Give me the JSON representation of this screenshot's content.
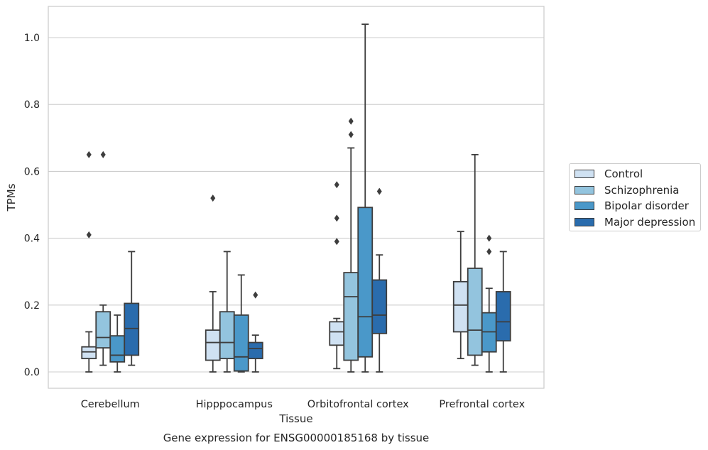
{
  "caption": "Gene expression for ENSG00000185168 by tissue",
  "chart_data": {
    "type": "boxplot",
    "xlabel": "Tissue",
    "ylabel": "TPMs",
    "ylim": [
      -0.05,
      1.09
    ],
    "yticks": [
      "0.0",
      "0.2",
      "0.4",
      "0.6",
      "0.8",
      "1.0"
    ],
    "grid": "horizontal",
    "legend_position": "right",
    "categories": [
      "Cerebellum",
      "Hipppocampus",
      "Orbitofrontal cortex",
      "Prefrontal cortex"
    ],
    "series": [
      {
        "name": "Control",
        "color": "#cfe1f2",
        "boxes": [
          {
            "whislo": 0.0,
            "q1": 0.04,
            "med": 0.06,
            "q3": 0.075,
            "whishi": 0.12,
            "fliers": [
              0.41,
              0.65
            ]
          },
          {
            "whislo": 0.0,
            "q1": 0.035,
            "med": 0.088,
            "q3": 0.125,
            "whishi": 0.24,
            "fliers": [
              0.52
            ]
          },
          {
            "whislo": 0.01,
            "q1": 0.08,
            "med": 0.12,
            "q3": 0.15,
            "whishi": 0.16,
            "fliers": [
              0.39,
              0.46,
              0.56
            ]
          },
          {
            "whislo": 0.04,
            "q1": 0.12,
            "med": 0.2,
            "q3": 0.27,
            "whishi": 0.42,
            "fliers": []
          }
        ]
      },
      {
        "name": "Schizophrenia",
        "color": "#93c4de",
        "boxes": [
          {
            "whislo": 0.02,
            "q1": 0.072,
            "med": 0.103,
            "q3": 0.18,
            "whishi": 0.2,
            "fliers": [
              0.65
            ]
          },
          {
            "whislo": 0.0,
            "q1": 0.04,
            "med": 0.088,
            "q3": 0.18,
            "whishi": 0.36,
            "fliers": []
          },
          {
            "whislo": 0.0,
            "q1": 0.035,
            "med": 0.225,
            "q3": 0.297,
            "whishi": 0.67,
            "fliers": [
              0.71,
              0.75
            ]
          },
          {
            "whislo": 0.02,
            "q1": 0.05,
            "med": 0.125,
            "q3": 0.31,
            "whishi": 0.65,
            "fliers": []
          }
        ]
      },
      {
        "name": "Bipolar disorder",
        "color": "#4a98c9",
        "boxes": [
          {
            "whislo": 0.0,
            "q1": 0.03,
            "med": 0.05,
            "q3": 0.108,
            "whishi": 0.17,
            "fliers": []
          },
          {
            "whislo": 0.0,
            "q1": 0.003,
            "med": 0.045,
            "q3": 0.17,
            "whishi": 0.29,
            "fliers": []
          },
          {
            "whislo": 0.0,
            "q1": 0.045,
            "med": 0.165,
            "q3": 0.492,
            "whishi": 1.04,
            "fliers": []
          },
          {
            "whislo": 0.0,
            "q1": 0.06,
            "med": 0.12,
            "q3": 0.177,
            "whishi": 0.25,
            "fliers": [
              0.36,
              0.4
            ]
          }
        ]
      },
      {
        "name": "Major depression",
        "color": "#2a6cad",
        "boxes": [
          {
            "whislo": 0.02,
            "q1": 0.05,
            "med": 0.13,
            "q3": 0.205,
            "whishi": 0.36,
            "fliers": []
          },
          {
            "whislo": 0.0,
            "q1": 0.04,
            "med": 0.07,
            "q3": 0.088,
            "whishi": 0.11,
            "fliers": [
              0.23
            ]
          },
          {
            "whislo": 0.0,
            "q1": 0.115,
            "med": 0.17,
            "q3": 0.275,
            "whishi": 0.35,
            "fliers": [
              0.54
            ]
          },
          {
            "whislo": 0.0,
            "q1": 0.093,
            "med": 0.15,
            "q3": 0.24,
            "whishi": 0.36,
            "fliers": []
          }
        ]
      }
    ]
  }
}
